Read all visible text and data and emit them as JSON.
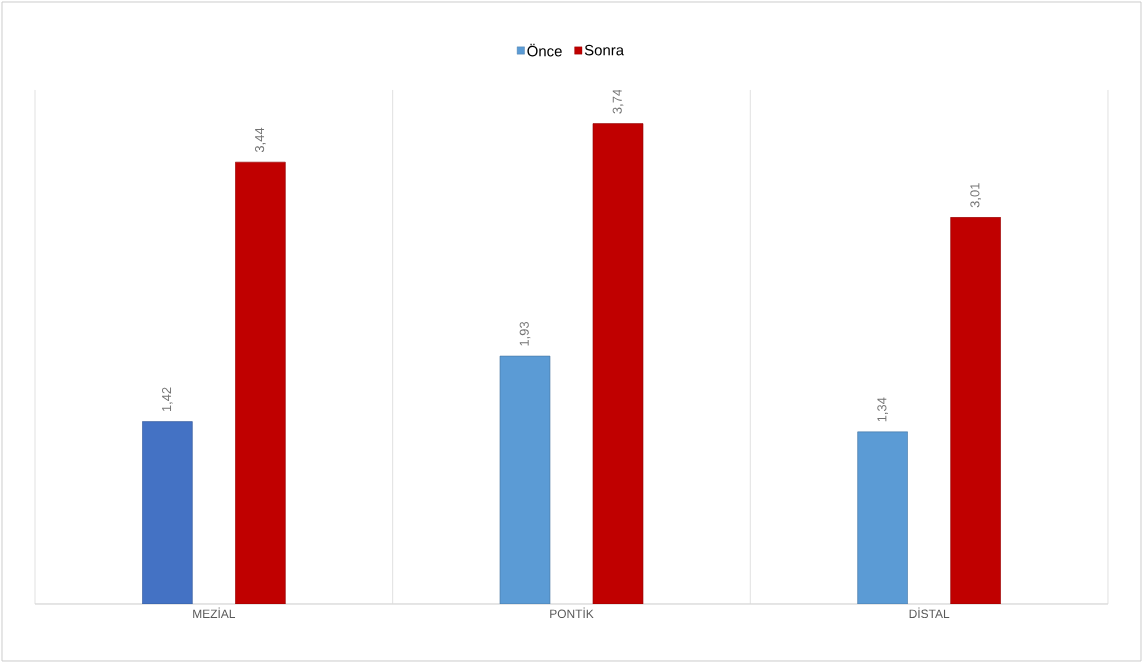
{
  "chart_data": {
    "type": "bar",
    "categories": [
      "MEZİAL",
      "PONTİK",
      "DİSTAL"
    ],
    "series": [
      {
        "name": "Önce",
        "color": "#5b9bd5",
        "colors": [
          "#4472c4",
          "#5b9bd5",
          "#5b9bd5"
        ],
        "values": [
          1.42,
          1.93,
          1.34
        ],
        "value_labels": [
          "1,42",
          "1,93",
          "1,34"
        ]
      },
      {
        "name": "Sonra",
        "color": "#c00000",
        "values": [
          3.44,
          3.74,
          3.01
        ],
        "value_labels": [
          "3,44",
          "3,74",
          "3,01"
        ]
      }
    ],
    "grid": "x",
    "legend": "top",
    "tick_labels": "x"
  }
}
